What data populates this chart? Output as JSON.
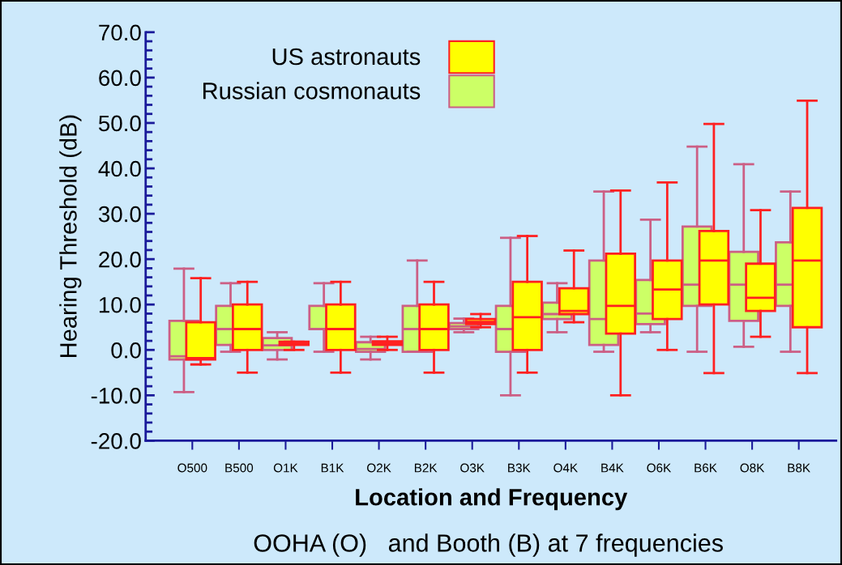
{
  "chart_data": {
    "type": "box",
    "xlabel": "Location and Frequency",
    "ylabel": "Hearing Threshold (dB)",
    "annotations": [
      "OOHA (O)   and Booth (B) at 7 frequencies"
    ],
    "categories": [
      "O500",
      "B500",
      "O1K",
      "B1K",
      "O2K",
      "B2K",
      "O3K",
      "B3K",
      "O4K",
      "B4K",
      "O6K",
      "B6K",
      "O8K",
      "B8K"
    ],
    "ylim": [
      -20,
      70
    ],
    "yticks": [
      {
        "value": -20,
        "label": "-20.0"
      },
      {
        "value": -10,
        "label": "-10.0"
      },
      {
        "value": 0,
        "label": "0.0"
      },
      {
        "value": 10,
        "label": "10.0"
      },
      {
        "value": 20,
        "label": "20.0"
      },
      {
        "value": 30,
        "label": "30.0"
      },
      {
        "value": 40,
        "label": "40.0"
      },
      {
        "value": 50,
        "label": "50.0"
      },
      {
        "value": 60,
        "label": "60.0"
      },
      {
        "value": 70,
        "label": "70.0"
      }
    ],
    "legend": "top left",
    "grid": false,
    "series": [
      {
        "name": "US astronauts",
        "color": "#ffff00",
        "boxes": [
          {
            "low": -3.2,
            "q1": -2.1,
            "median": -1.8,
            "q3": 6.1,
            "high": 15.8
          },
          {
            "low": -5.0,
            "q1": 0.0,
            "median": 4.6,
            "q3": 10.0,
            "high": 15.0
          },
          {
            "low": 0.0,
            "q1": 1.1,
            "median": 1.4,
            "q3": 1.8,
            "high": 1.8
          },
          {
            "low": -5.0,
            "q1": 0.0,
            "median": 4.6,
            "q3": 10.0,
            "high": 15.0
          },
          {
            "low": 0.0,
            "q1": 1.1,
            "median": 1.4,
            "q3": 1.9,
            "high": 2.9
          },
          {
            "low": -5.0,
            "q1": 0.0,
            "median": 4.6,
            "q3": 10.0,
            "high": 15.0
          },
          {
            "low": 5.0,
            "q1": 5.7,
            "median": 6.2,
            "q3": 6.8,
            "high": 7.9
          },
          {
            "low": -5.0,
            "q1": 0.0,
            "median": 7.2,
            "q3": 15.0,
            "high": 25.1
          },
          {
            "low": 6.1,
            "q1": 7.9,
            "median": 8.6,
            "q3": 13.6,
            "high": 21.9
          },
          {
            "low": -10.0,
            "q1": 3.6,
            "median": 9.7,
            "q3": 21.2,
            "high": 35.1
          },
          {
            "low": 0.0,
            "q1": 6.8,
            "median": 13.3,
            "q3": 19.7,
            "high": 36.9
          },
          {
            "low": -5.1,
            "q1": 10.0,
            "median": 19.7,
            "q3": 26.2,
            "high": 49.8
          },
          {
            "low": 2.9,
            "q1": 8.6,
            "median": 11.5,
            "q3": 19.0,
            "high": 30.8
          },
          {
            "low": -5.1,
            "q1": 5.0,
            "median": 19.7,
            "q3": 31.3,
            "high": 54.9
          }
        ]
      },
      {
        "name": "Russian cosmonauts",
        "color": "#ccff66",
        "boxes": [
          {
            "low": -9.3,
            "q1": -2.1,
            "median": -1.4,
            "q3": 6.4,
            "high": 17.9
          },
          {
            "low": -0.4,
            "q1": 1.1,
            "median": 4.6,
            "q3": 9.7,
            "high": 14.7
          },
          {
            "low": -2.1,
            "q1": 0.0,
            "median": 1.0,
            "q3": 2.6,
            "high": 3.9
          },
          {
            "low": -0.4,
            "q1": 4.6,
            "median": 4.6,
            "q3": 9.7,
            "high": 14.7
          },
          {
            "low": -2.1,
            "q1": -0.4,
            "median": 0.2,
            "q3": 1.7,
            "high": 2.9
          },
          {
            "low": -0.4,
            "q1": -0.4,
            "median": 4.6,
            "q3": 9.7,
            "high": 19.7
          },
          {
            "low": 3.9,
            "q1": 4.6,
            "median": 5.2,
            "q3": 5.9,
            "high": 6.9
          },
          {
            "low": -10.0,
            "q1": -0.4,
            "median": 4.6,
            "q3": 9.7,
            "high": 24.7
          },
          {
            "low": 3.9,
            "q1": 6.8,
            "median": 7.9,
            "q3": 10.4,
            "high": 14.7
          },
          {
            "low": -0.4,
            "q1": 1.1,
            "median": 6.8,
            "q3": 19.7,
            "high": 34.9
          },
          {
            "low": 3.9,
            "q1": 5.7,
            "median": 8.0,
            "q3": 15.4,
            "high": 28.7
          },
          {
            "low": -0.4,
            "q1": 9.7,
            "median": 14.4,
            "q3": 27.2,
            "high": 44.8
          },
          {
            "low": 0.7,
            "q1": 6.4,
            "median": 14.4,
            "q3": 21.6,
            "high": 40.9
          },
          {
            "low": -0.4,
            "q1": 9.7,
            "median": 14.4,
            "q3": 23.7,
            "high": 34.9
          }
        ]
      }
    ]
  }
}
